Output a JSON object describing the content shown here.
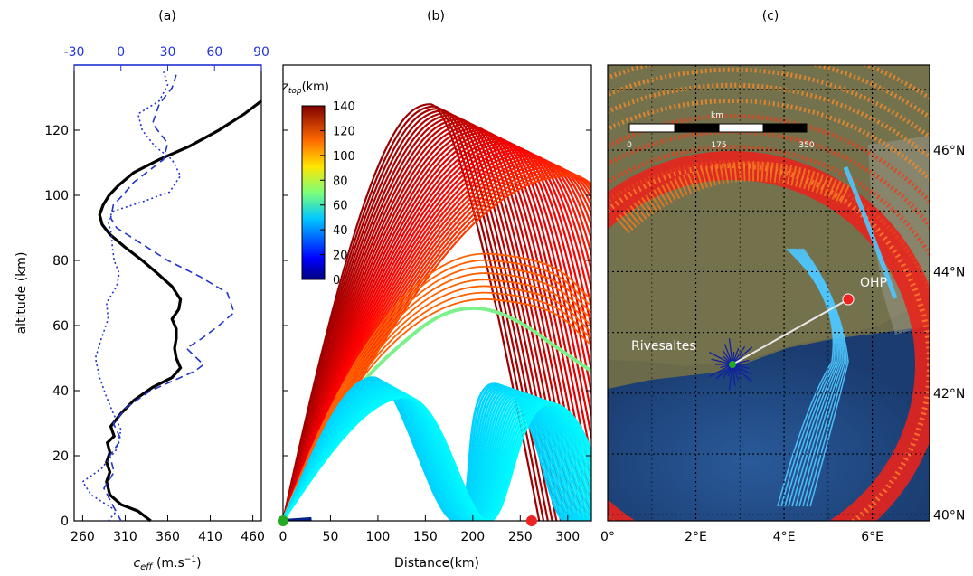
{
  "panel_labels": [
    "(a)",
    "(b)",
    "(c)"
  ],
  "chart_data": [
    {
      "panel": "(a)",
      "type": "line",
      "xlabel": "c_eff (m.s-1)",
      "ylabel": "altitude (km)",
      "xlim": [
        250,
        470
      ],
      "ylim": [
        0,
        140
      ],
      "xticks": [
        260,
        310,
        360,
        410,
        460
      ],
      "yticks": [
        0,
        20,
        40,
        60,
        80,
        100,
        120
      ],
      "top_axis": {
        "color": "#2233dd",
        "ticks": [
          -30,
          0,
          30,
          60,
          90
        ],
        "lim": [
          -30,
          90
        ]
      },
      "series": [
        {
          "style": "solid",
          "color": "#000000",
          "points": [
            [
              340,
              0
            ],
            [
              325,
              3
            ],
            [
              305,
              5
            ],
            [
              292,
              8
            ],
            [
              288,
              12
            ],
            [
              292,
              15
            ],
            [
              288,
              18
            ],
            [
              292,
              21
            ],
            [
              289,
              24
            ],
            [
              297,
              26
            ],
            [
              293,
              29
            ],
            [
              305,
              33
            ],
            [
              320,
              37
            ],
            [
              342,
              41
            ],
            [
              365,
              44
            ],
            [
              375,
              47
            ],
            [
              370,
              50
            ],
            [
              368,
              53
            ],
            [
              370,
              56
            ],
            [
              370,
              59
            ],
            [
              365,
              62
            ],
            [
              373,
              65
            ],
            [
              375,
              68
            ],
            [
              365,
              72
            ],
            [
              348,
              76
            ],
            [
              330,
              80
            ],
            [
              310,
              84
            ],
            [
              292,
              88
            ],
            [
              283,
              91
            ],
            [
              280,
              94
            ],
            [
              284,
              97
            ],
            [
              291,
              100
            ],
            [
              302,
              103
            ],
            [
              320,
              107
            ],
            [
              350,
              111
            ],
            [
              385,
              115
            ],
            [
              420,
              120
            ],
            [
              450,
              125
            ],
            [
              470,
              129
            ]
          ]
        },
        {
          "style": "dashed",
          "color": "#2233cc",
          "points": [
            [
              305,
              0
            ],
            [
              295,
              5
            ],
            [
              285,
              10
            ],
            [
              297,
              15
            ],
            [
              292,
              20
            ],
            [
              305,
              25
            ],
            [
              296,
              30
            ],
            [
              312,
              35
            ],
            [
              340,
              40
            ],
            [
              392,
              46
            ],
            [
              402,
              48
            ],
            [
              382,
              53
            ],
            [
              400,
              56
            ],
            [
              420,
              60
            ],
            [
              438,
              64
            ],
            [
              430,
              70
            ],
            [
              398,
              75
            ],
            [
              360,
              80
            ],
            [
              330,
              85
            ],
            [
              300,
              90
            ],
            [
              293,
              93
            ],
            [
              296,
              97
            ],
            [
              307,
              100
            ],
            [
              320,
              104
            ],
            [
              340,
              108
            ],
            [
              355,
              111
            ],
            [
              360,
              116
            ],
            [
              342,
              122
            ],
            [
              350,
              128
            ],
            [
              365,
              133
            ],
            [
              370,
              137
            ]
          ]
        },
        {
          "style": "dotted",
          "color": "#2233cc",
          "points": [
            [
              290,
              0
            ],
            [
              300,
              3
            ],
            [
              270,
              8
            ],
            [
              260,
              12
            ],
            [
              282,
              16
            ],
            [
              300,
              22
            ],
            [
              305,
              28
            ],
            [
              296,
              33
            ],
            [
              288,
              38
            ],
            [
              280,
              44
            ],
            [
              275,
              50
            ],
            [
              282,
              56
            ],
            [
              290,
              62
            ],
            [
              288,
              67
            ],
            [
              300,
              72
            ],
            [
              303,
              76
            ],
            [
              297,
              80
            ],
            [
              295,
              84
            ],
            [
              294,
              88
            ],
            [
              290,
              92
            ],
            [
              295,
              95
            ],
            [
              330,
              98
            ],
            [
              362,
              101
            ],
            [
              375,
              106
            ],
            [
              365,
              111
            ],
            [
              345,
              115
            ],
            [
              330,
              120
            ],
            [
              325,
              125
            ],
            [
              350,
              129
            ],
            [
              360,
              134
            ],
            [
              355,
              138
            ]
          ]
        }
      ]
    },
    {
      "panel": "(b)",
      "type": "line",
      "xlabel": "Distance(km)",
      "ylabel": "",
      "xlim": [
        0,
        325
      ],
      "ylim": [
        0,
        140
      ],
      "xticks": [
        0,
        50,
        100,
        150,
        200,
        250,
        300
      ],
      "colorbar": {
        "title": "z_top(km)",
        "ticks": [
          0,
          20,
          40,
          60,
          80,
          100,
          120,
          140
        ]
      },
      "markers": [
        {
          "distance": 0,
          "color": "#22aa22"
        },
        {
          "distance": 262,
          "color": "#ee2222"
        }
      ]
    },
    {
      "panel": "(c)",
      "type": "map",
      "lon_ticks": [
        "0°",
        "2°E",
        "4°E",
        "6°E"
      ],
      "lat_ticks": [
        "40°N",
        "42°N",
        "44°N",
        "46°N"
      ],
      "scalebar": {
        "unit": "km",
        "labels": [
          "0",
          "175",
          "350"
        ]
      },
      "places": [
        {
          "name": "Rivesaltes",
          "lon": 2.9,
          "lat": 42.75,
          "marker_color": "#22aa22"
        },
        {
          "name": "OHP",
          "lon": 5.7,
          "lat": 43.9,
          "marker_color": "#ee2222"
        }
      ]
    }
  ]
}
